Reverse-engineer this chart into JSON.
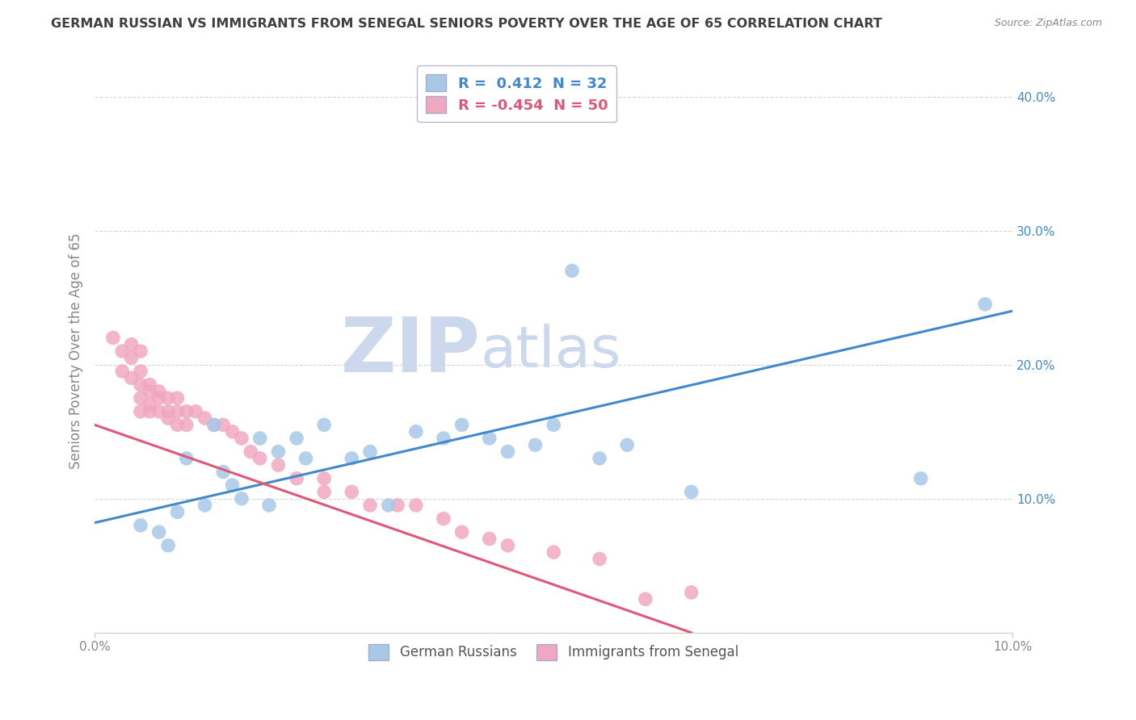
{
  "title": "GERMAN RUSSIAN VS IMMIGRANTS FROM SENEGAL SENIORS POVERTY OVER THE AGE OF 65 CORRELATION CHART",
  "source": "Source: ZipAtlas.com",
  "ylabel": "Seniors Poverty Over the Age of 65",
  "xlim": [
    0.0,
    0.1
  ],
  "ylim": [
    0.0,
    0.42
  ],
  "watermark_zip": "ZIP",
  "watermark_atlas": "atlas",
  "legend": {
    "blue_r": "0.412",
    "blue_n": "32",
    "pink_r": "-0.454",
    "pink_n": "50"
  },
  "blue_scatter": [
    [
      0.005,
      0.08
    ],
    [
      0.007,
      0.075
    ],
    [
      0.008,
      0.065
    ],
    [
      0.009,
      0.09
    ],
    [
      0.01,
      0.13
    ],
    [
      0.012,
      0.095
    ],
    [
      0.013,
      0.155
    ],
    [
      0.014,
      0.12
    ],
    [
      0.015,
      0.11
    ],
    [
      0.016,
      0.1
    ],
    [
      0.018,
      0.145
    ],
    [
      0.019,
      0.095
    ],
    [
      0.02,
      0.135
    ],
    [
      0.022,
      0.145
    ],
    [
      0.023,
      0.13
    ],
    [
      0.025,
      0.155
    ],
    [
      0.028,
      0.13
    ],
    [
      0.03,
      0.135
    ],
    [
      0.032,
      0.095
    ],
    [
      0.035,
      0.15
    ],
    [
      0.038,
      0.145
    ],
    [
      0.04,
      0.155
    ],
    [
      0.043,
      0.145
    ],
    [
      0.045,
      0.135
    ],
    [
      0.048,
      0.14
    ],
    [
      0.05,
      0.155
    ],
    [
      0.052,
      0.27
    ],
    [
      0.055,
      0.13
    ],
    [
      0.058,
      0.14
    ],
    [
      0.065,
      0.105
    ],
    [
      0.09,
      0.115
    ],
    [
      0.097,
      0.245
    ]
  ],
  "pink_scatter": [
    [
      0.002,
      0.22
    ],
    [
      0.003,
      0.21
    ],
    [
      0.003,
      0.195
    ],
    [
      0.004,
      0.215
    ],
    [
      0.004,
      0.205
    ],
    [
      0.004,
      0.19
    ],
    [
      0.005,
      0.21
    ],
    [
      0.005,
      0.195
    ],
    [
      0.005,
      0.185
    ],
    [
      0.005,
      0.175
    ],
    [
      0.005,
      0.165
    ],
    [
      0.006,
      0.185
    ],
    [
      0.006,
      0.18
    ],
    [
      0.006,
      0.17
    ],
    [
      0.006,
      0.165
    ],
    [
      0.007,
      0.18
    ],
    [
      0.007,
      0.175
    ],
    [
      0.007,
      0.165
    ],
    [
      0.008,
      0.175
    ],
    [
      0.008,
      0.165
    ],
    [
      0.008,
      0.16
    ],
    [
      0.009,
      0.175
    ],
    [
      0.009,
      0.165
    ],
    [
      0.009,
      0.155
    ],
    [
      0.01,
      0.165
    ],
    [
      0.01,
      0.155
    ],
    [
      0.011,
      0.165
    ],
    [
      0.012,
      0.16
    ],
    [
      0.013,
      0.155
    ],
    [
      0.014,
      0.155
    ],
    [
      0.015,
      0.15
    ],
    [
      0.016,
      0.145
    ],
    [
      0.017,
      0.135
    ],
    [
      0.018,
      0.13
    ],
    [
      0.02,
      0.125
    ],
    [
      0.022,
      0.115
    ],
    [
      0.025,
      0.115
    ],
    [
      0.025,
      0.105
    ],
    [
      0.028,
      0.105
    ],
    [
      0.03,
      0.095
    ],
    [
      0.033,
      0.095
    ],
    [
      0.035,
      0.095
    ],
    [
      0.038,
      0.085
    ],
    [
      0.04,
      0.075
    ],
    [
      0.043,
      0.07
    ],
    [
      0.045,
      0.065
    ],
    [
      0.05,
      0.06
    ],
    [
      0.055,
      0.055
    ],
    [
      0.06,
      0.025
    ],
    [
      0.065,
      0.03
    ]
  ],
  "blue_line": [
    [
      0.0,
      0.082
    ],
    [
      0.1,
      0.24
    ]
  ],
  "pink_line": [
    [
      0.0,
      0.155
    ],
    [
      0.065,
      0.0
    ]
  ],
  "blue_color": "#a8c8e8",
  "pink_color": "#f0a8c0",
  "blue_line_color": "#4488cc",
  "pink_line_color": "#e05878",
  "background_color": "#ffffff",
  "grid_color": "#cccccc",
  "title_color": "#404040",
  "axis_color": "#888888",
  "watermark_color": "#ccd8ec",
  "legend_label_blue": "German Russians",
  "legend_label_pink": "Immigrants from Senegal"
}
